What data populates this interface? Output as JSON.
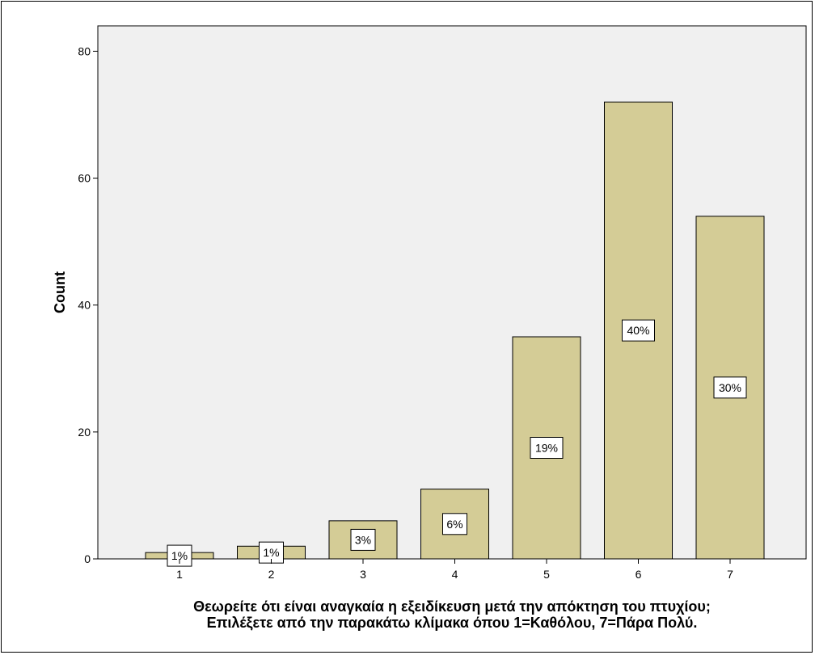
{
  "chart_data": {
    "type": "bar",
    "categories": [
      "1",
      "2",
      "3",
      "4",
      "5",
      "6",
      "7"
    ],
    "values": [
      1,
      2,
      6,
      11,
      35,
      72,
      54
    ],
    "data_labels": [
      "1%",
      "1%",
      "3%",
      "6%",
      "19%",
      "40%",
      "30%"
    ],
    "ylabel": "Count",
    "xlabel_lines": [
      "Θεωρείτε ότι είναι αναγκαία η εξειδίκευση μετά την απόκτηση του πτυχίου;",
      "Επιλέξετε από την παρακάτω κλίμακα όπου 1=Καθόλου, 7=Πάρα Πολύ."
    ],
    "yticks": [
      "0",
      "20",
      "40",
      "60",
      "80"
    ],
    "ylim": [
      0,
      84
    ],
    "grid": false,
    "colors": {
      "bar_fill": "#d4cc96",
      "plot_background": "#f0f0f0",
      "label_box": "#ffffff"
    }
  }
}
